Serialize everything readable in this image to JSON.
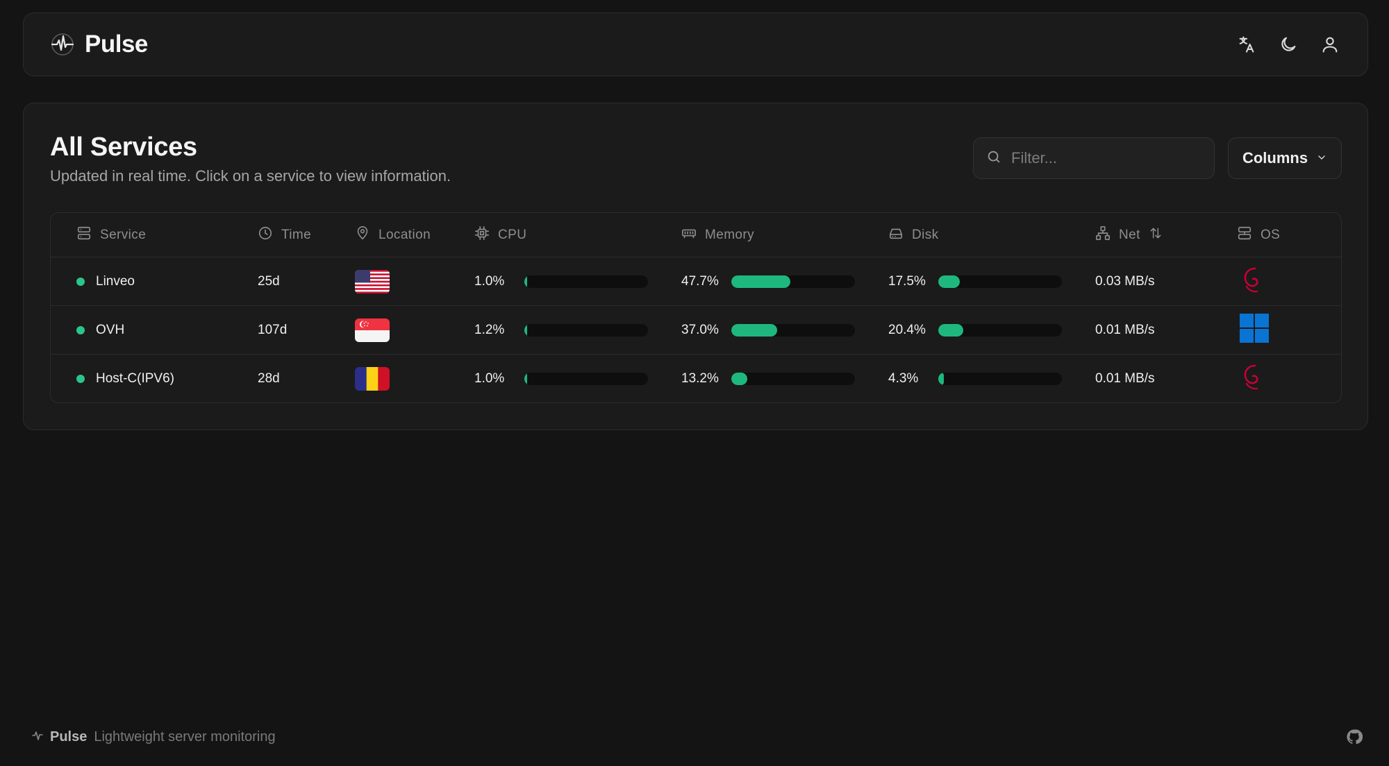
{
  "header": {
    "brand": "Pulse",
    "icons": [
      "pulse-logo-icon",
      "translate-icon",
      "moon-icon",
      "user-icon"
    ]
  },
  "card": {
    "title": "All Services",
    "subtitle": "Updated in real time. Click on a service to view information.",
    "filter_placeholder": "Filter...",
    "columns_label": "Columns"
  },
  "table": {
    "headers": {
      "service": "Service",
      "time": "Time",
      "location": "Location",
      "cpu": "CPU",
      "memory": "Memory",
      "disk": "Disk",
      "net": "Net",
      "os": "OS"
    },
    "rows": [
      {
        "name": "Linveo",
        "status": "online",
        "time": "25d",
        "location": "US",
        "cpu": "1.0%",
        "cpu_value": 1.0,
        "memory": "47.7%",
        "memory_value": 47.7,
        "disk": "17.5%",
        "disk_value": 17.5,
        "net": "0.03 MB/s",
        "os": "debian"
      },
      {
        "name": "OVH",
        "status": "online",
        "time": "107d",
        "location": "SG",
        "cpu": "1.2%",
        "cpu_value": 1.2,
        "memory": "37.0%",
        "memory_value": 37.0,
        "disk": "20.4%",
        "disk_value": 20.4,
        "net": "0.01 MB/s",
        "os": "windows"
      },
      {
        "name": "Host-C(IPV6)",
        "status": "online",
        "time": "28d",
        "location": "RO",
        "cpu": "1.0%",
        "cpu_value": 1.0,
        "memory": "13.2%",
        "memory_value": 13.2,
        "disk": "4.3%",
        "disk_value": 4.3,
        "net": "0.01 MB/s",
        "os": "debian"
      }
    ]
  },
  "footer": {
    "name": "Pulse",
    "tagline": "Lightweight server monitoring"
  },
  "colors": {
    "background": "#141414",
    "surface": "#1b1b1b",
    "accent_green": "#1eb87f",
    "status_online": "#2bc48a",
    "debian_red": "#c70036",
    "windows_blue": "#0a74d4"
  }
}
